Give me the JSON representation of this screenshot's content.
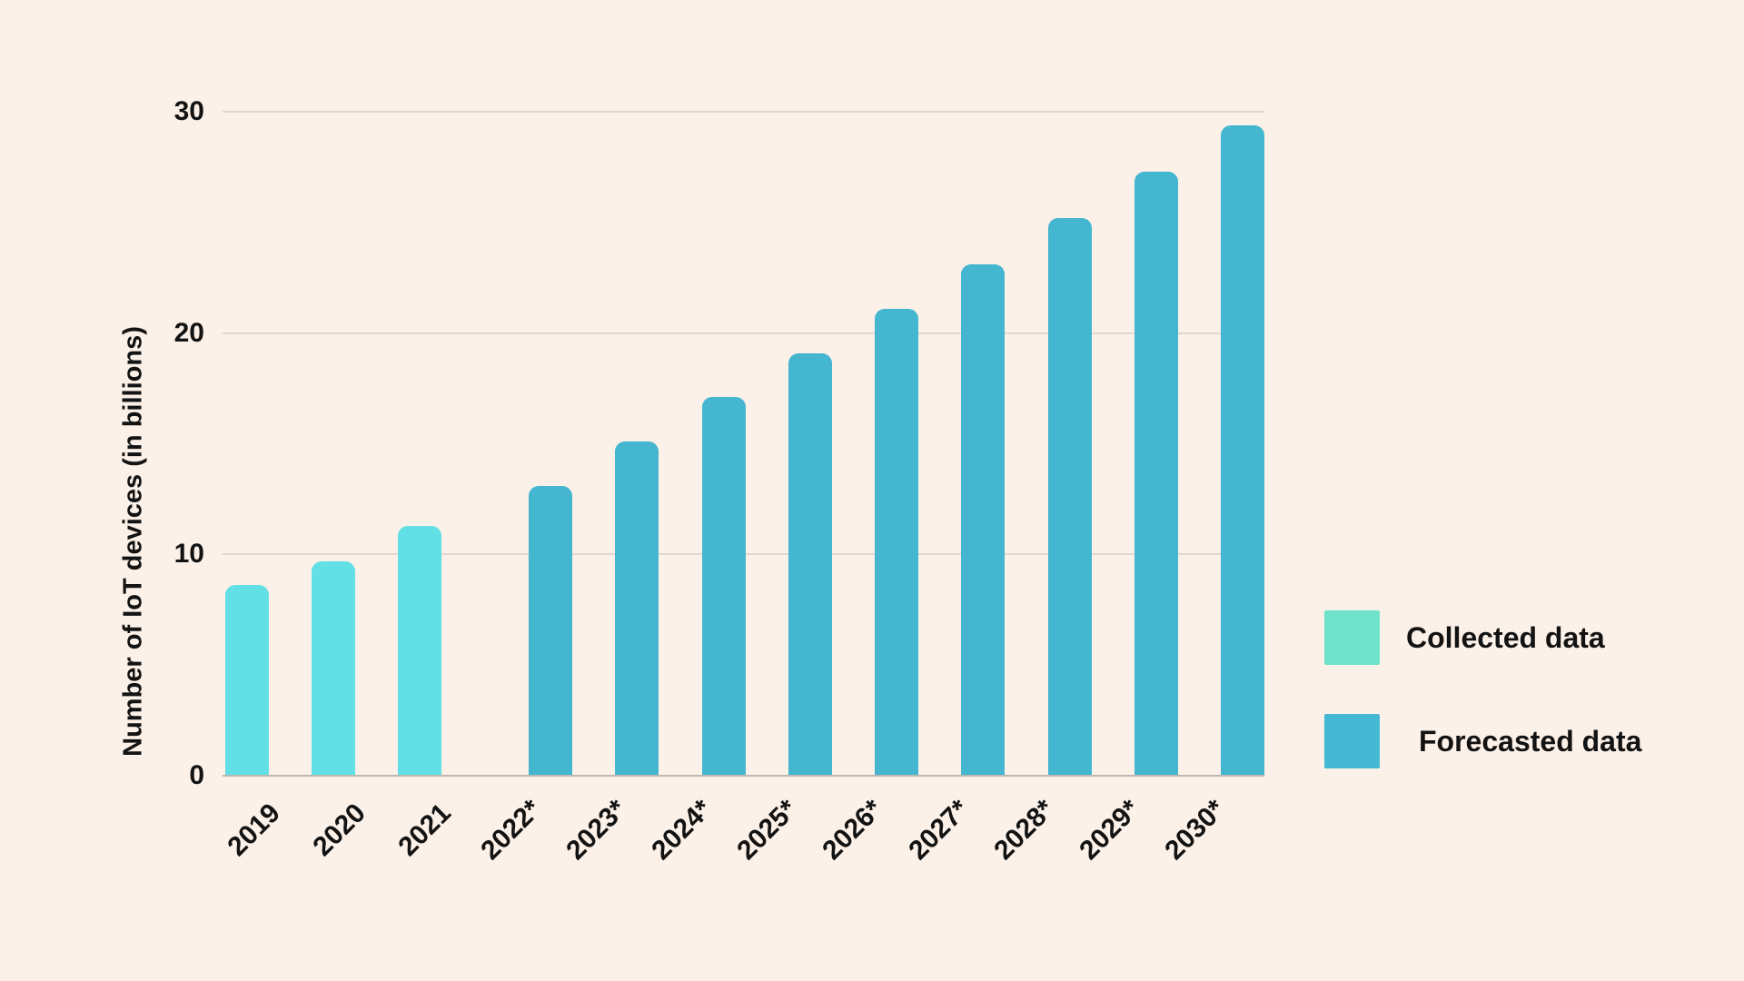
{
  "chart_data": {
    "type": "bar",
    "title": "",
    "xlabel": "",
    "ylabel": "Number of IoT devices (in billions)",
    "ylim": [
      0,
      30
    ],
    "yticks": [
      0,
      10,
      20,
      30
    ],
    "grid": "horizontal",
    "legend_position": "right",
    "categories": [
      "2019",
      "2020",
      "2021",
      "2022*",
      "2023*",
      "2024*",
      "2025*",
      "2026*",
      "2027*",
      "2028*",
      "2029*",
      "2030*"
    ],
    "series": [
      {
        "name": "Collected data",
        "color": "#63E0E6",
        "values": [
          8.6,
          9.7,
          11.3
        ]
      },
      {
        "name": "Forecasted data",
        "color": "#45B6D0",
        "values": [
          13.1,
          15.1,
          17.1,
          19.1,
          21.1,
          23.1,
          25.2,
          27.3,
          29.4
        ]
      }
    ]
  },
  "legend": {
    "items": [
      {
        "label": "Collected data",
        "color": "#6EE3C9"
      },
      {
        "label": "Forecasted data",
        "color": "#45B8D3"
      }
    ]
  },
  "colors": {
    "background": "#FCF1E8",
    "text": "#131313",
    "gridline": "#DED8D2",
    "axisline": "#BEB8B2"
  }
}
